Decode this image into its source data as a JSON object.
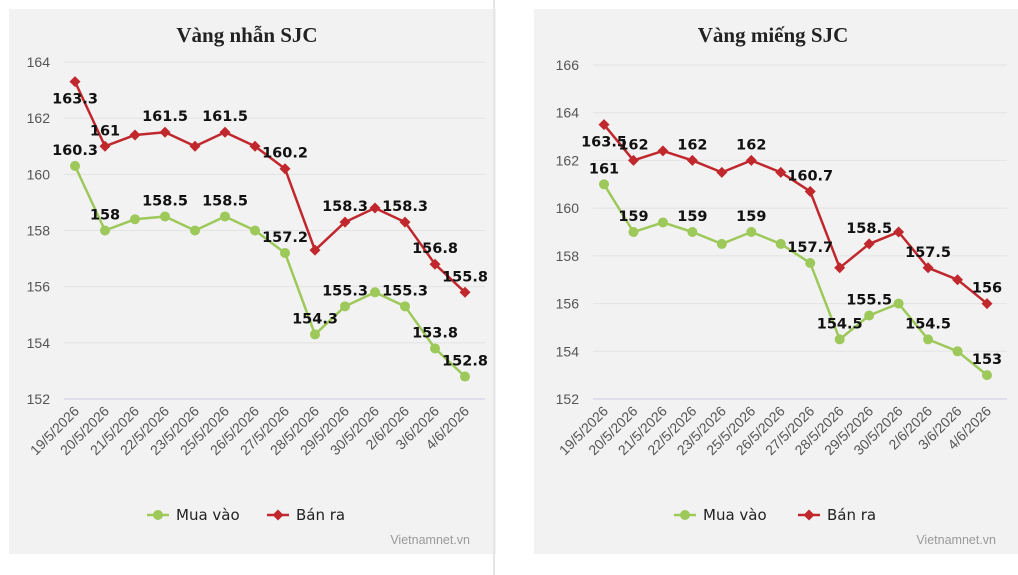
{
  "chart_data": [
    {
      "type": "line",
      "title": "Vàng nhẫn SJC",
      "categories": [
        "19/5/2026",
        "20/5/2026",
        "21/5/2026",
        "22/5/2026",
        "23/5/2026",
        "25/5/2026",
        "26/5/2026",
        "27/5/2026",
        "28/5/2026",
        "29/5/2026",
        "30/5/2026",
        "2/6/2026",
        "3/6/2026",
        "4/6/2026"
      ],
      "series": [
        {
          "name": "Mua vào",
          "color": "#9dc85a",
          "marker": "circle",
          "values": [
            160.3,
            158,
            158.4,
            158.5,
            158,
            158.5,
            158,
            157.2,
            154.3,
            155.3,
            155.8,
            155.3,
            153.8,
            152.8
          ],
          "labels": [
            "160.3",
            "158",
            "",
            "158.5",
            "",
            "158.5",
            "",
            "157.2",
            "154.3",
            "155.3",
            "",
            "155.3",
            "153.8",
            "152.8"
          ]
        },
        {
          "name": "Bán ra",
          "color": "#c0282d",
          "marker": "diamond",
          "values": [
            163.3,
            161,
            161.4,
            161.5,
            161,
            161.5,
            161,
            160.2,
            157.3,
            158.3,
            158.8,
            158.3,
            156.8,
            155.8
          ],
          "labels": [
            "163.3",
            "161",
            "",
            "161.5",
            "",
            "161.5",
            "",
            "160.2",
            "",
            "158.3",
            "",
            "158.3",
            "156.8",
            "155.8"
          ]
        }
      ],
      "yticks": [
        152,
        154,
        156,
        158,
        160,
        162,
        164
      ],
      "ylim": [
        152,
        164
      ],
      "grid": true,
      "legend": "bottom",
      "credit": "Vietnamnet.vn"
    },
    {
      "type": "line",
      "title": "Vàng miếng SJC",
      "categories": [
        "19/5/2026",
        "20/5/2026",
        "21/5/2026",
        "22/5/2026",
        "23/5/2026",
        "25/5/2026",
        "26/5/2026",
        "27/5/2026",
        "28/5/2026",
        "29/5/2026",
        "30/5/2026",
        "2/6/2026",
        "3/6/2026",
        "4/6/2026"
      ],
      "series": [
        {
          "name": "Mua vào",
          "color": "#9dc85a",
          "marker": "circle",
          "values": [
            161,
            159,
            159.4,
            159,
            158.5,
            159,
            158.5,
            157.7,
            154.5,
            155.5,
            156,
            154.5,
            154,
            153
          ],
          "labels": [
            "161",
            "159",
            "",
            "159",
            "",
            "159",
            "",
            "157.7",
            "154.5",
            "155.5",
            "",
            "154.5",
            "",
            "153"
          ]
        },
        {
          "name": "Bán ra",
          "color": "#c0282d",
          "marker": "diamond",
          "values": [
            163.5,
            162,
            162.4,
            162,
            161.5,
            162,
            161.5,
            160.7,
            157.5,
            158.5,
            159,
            157.5,
            157,
            156
          ],
          "labels": [
            "163.5",
            "162",
            "",
            "162",
            "",
            "162",
            "",
            "160.7",
            "",
            "158.5",
            "",
            "157.5",
            "",
            "156"
          ]
        }
      ],
      "yticks": [
        152,
        154,
        156,
        158,
        160,
        162,
        164,
        166
      ],
      "ylim": [
        152,
        166
      ],
      "grid": true,
      "legend": "bottom",
      "credit": "Vietnamnet.vn"
    }
  ]
}
